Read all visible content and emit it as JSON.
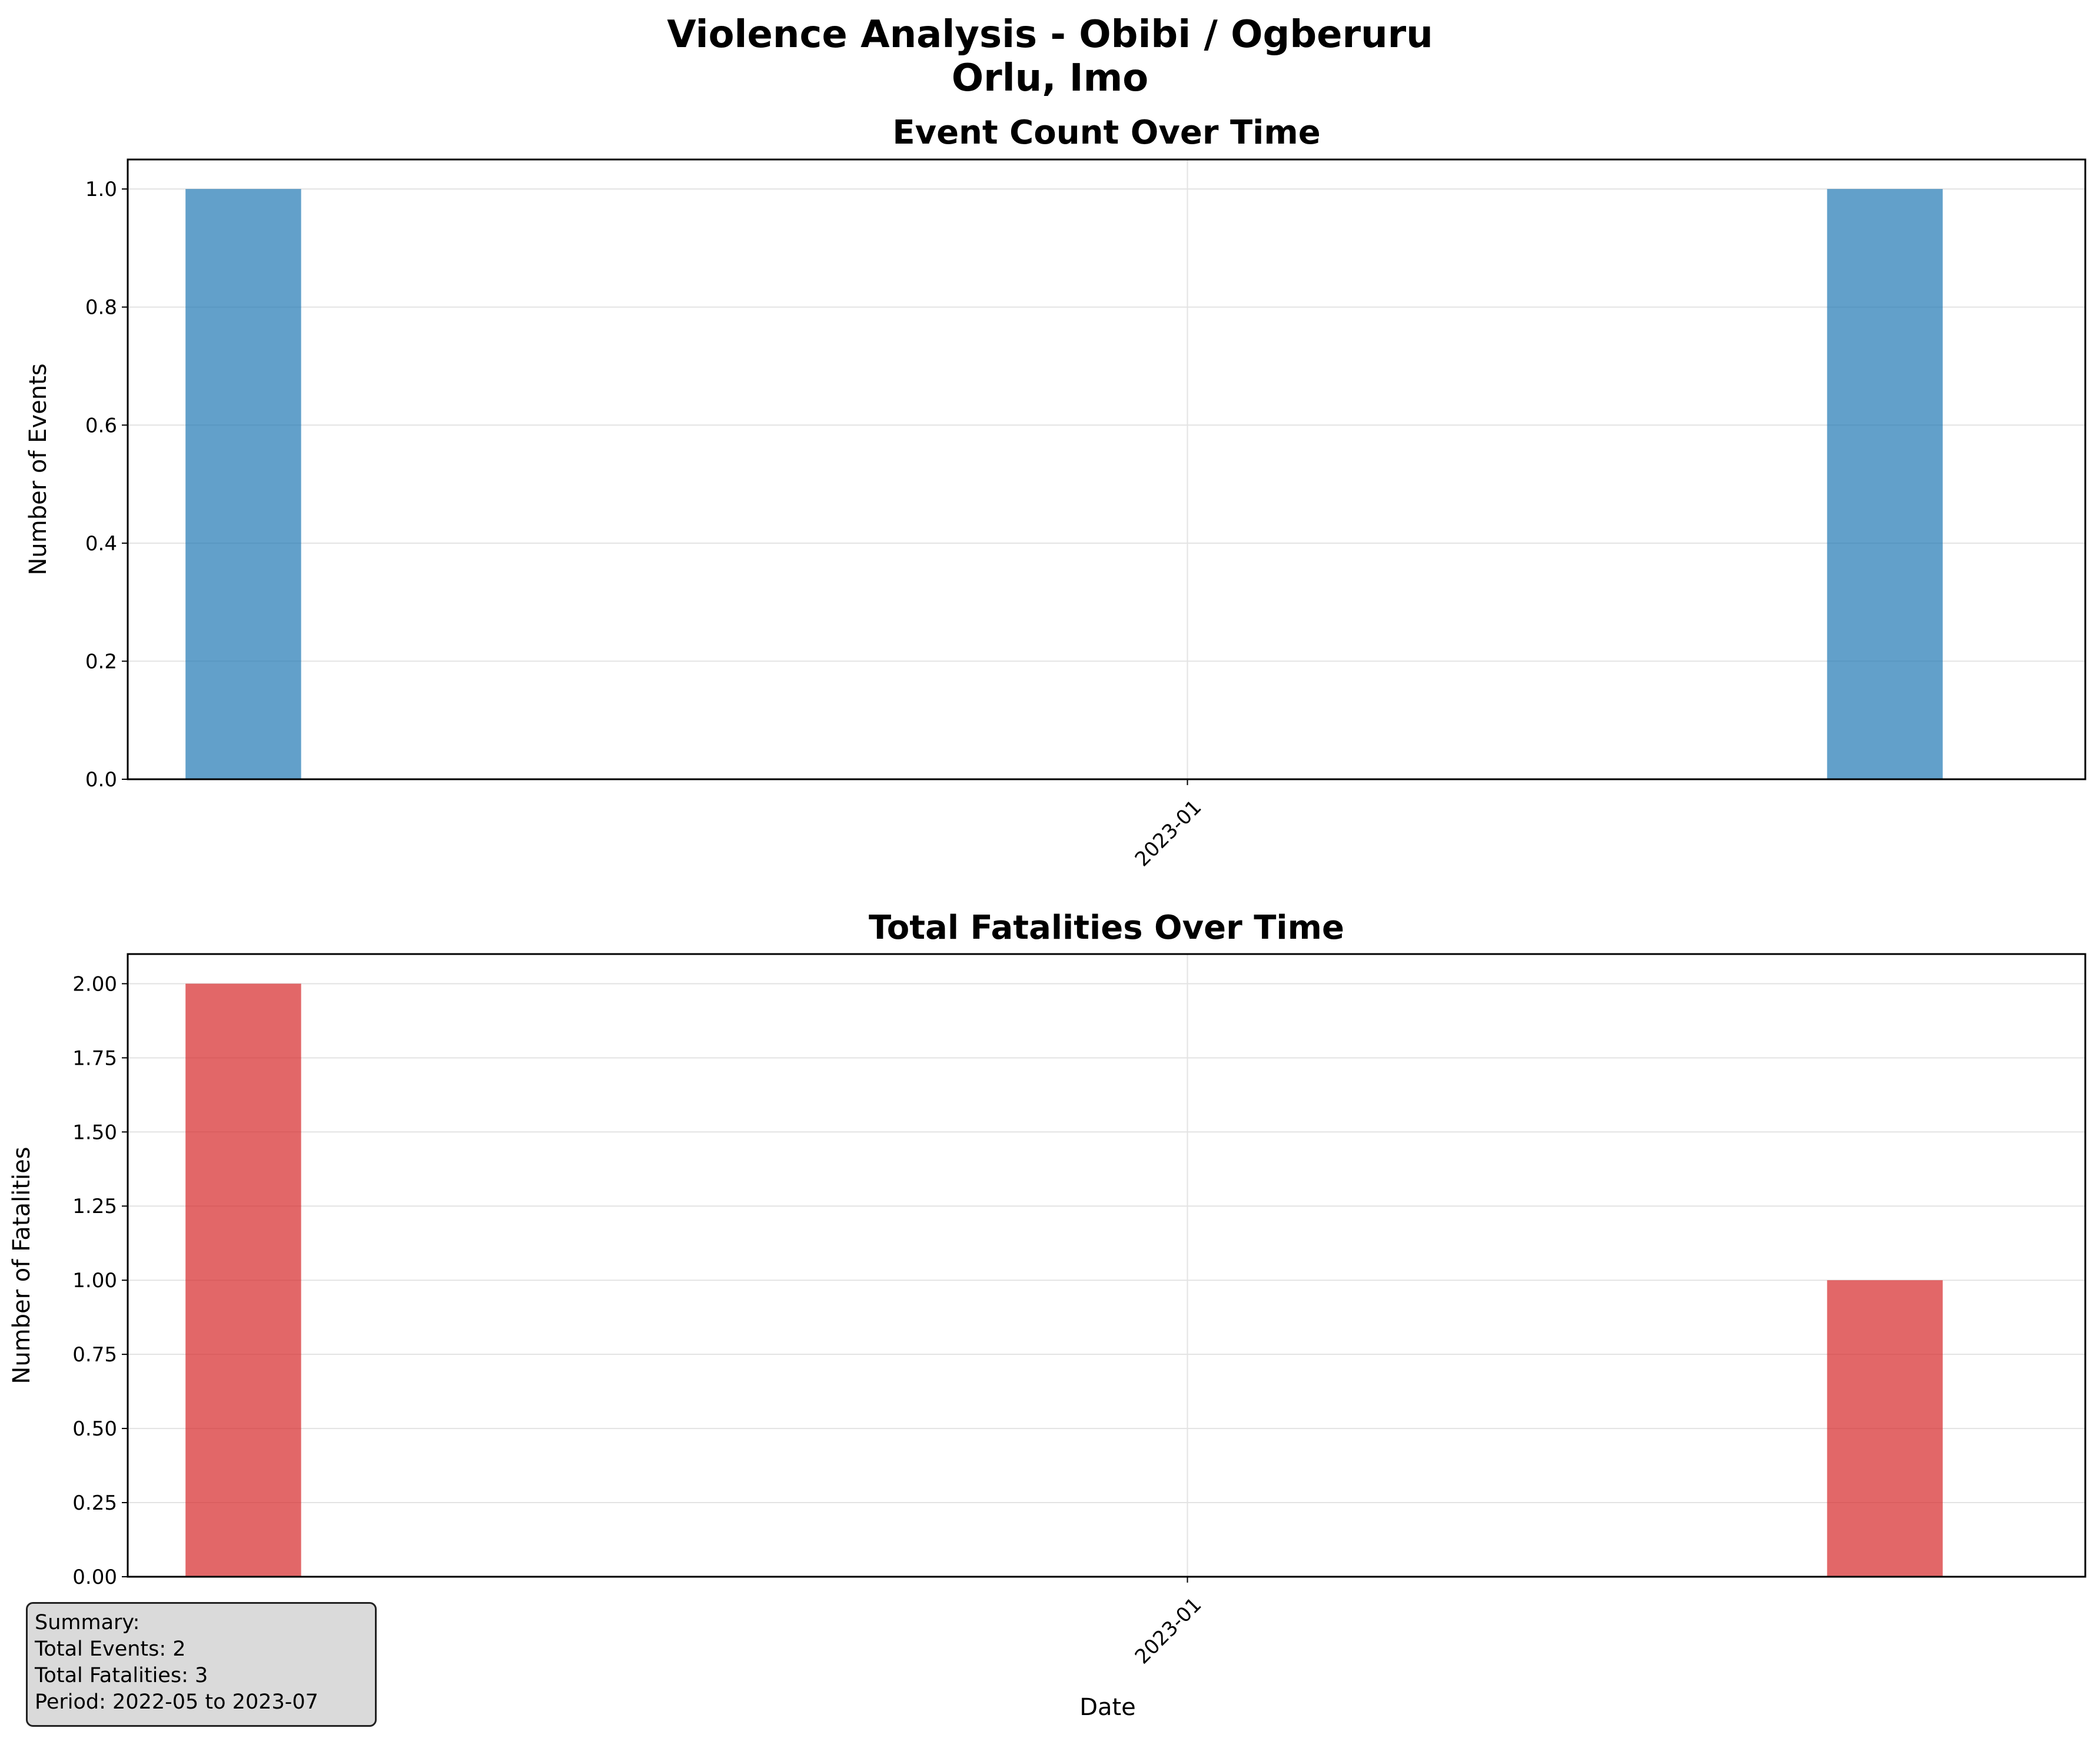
{
  "figure": {
    "title_line1": "Violence Analysis - Obibi / Ogberuru",
    "title_line2": "Orlu, Imo"
  },
  "chart_data": [
    {
      "type": "bar",
      "title": "Event Count Over Time",
      "xlabel": "",
      "ylabel": "Number of Events",
      "x": [
        "2022-05",
        "2023-07"
      ],
      "values": [
        1,
        1
      ],
      "xlim": [
        "2022-04-01",
        "2023-08-22"
      ],
      "ylim": [
        0,
        1.05
      ],
      "yticks": [
        "0.0",
        "0.2",
        "0.4",
        "0.6",
        "0.8",
        "1.0"
      ],
      "xticks": [
        "2023-01"
      ],
      "color": "#1f77b4",
      "grid": true
    },
    {
      "type": "bar",
      "title": "Total Fatalities Over Time",
      "xlabel": "Date",
      "ylabel": "Number of Fatalities",
      "x": [
        "2022-05",
        "2023-07"
      ],
      "values": [
        2,
        1
      ],
      "xlim": [
        "2022-04-01",
        "2023-08-22"
      ],
      "ylim": [
        0,
        2.1
      ],
      "yticks": [
        "0.00",
        "0.25",
        "0.50",
        "0.75",
        "1.00",
        "1.25",
        "1.50",
        "1.75",
        "2.00"
      ],
      "xticks": [
        "2023-01"
      ],
      "color": "#d62728",
      "grid": true
    }
  ],
  "summary": {
    "heading": "Summary:",
    "total_events": "Total Events: 2",
    "total_fatalities": "Total Fatalities: 3",
    "period": "Period: 2022-05 to 2023-07"
  }
}
